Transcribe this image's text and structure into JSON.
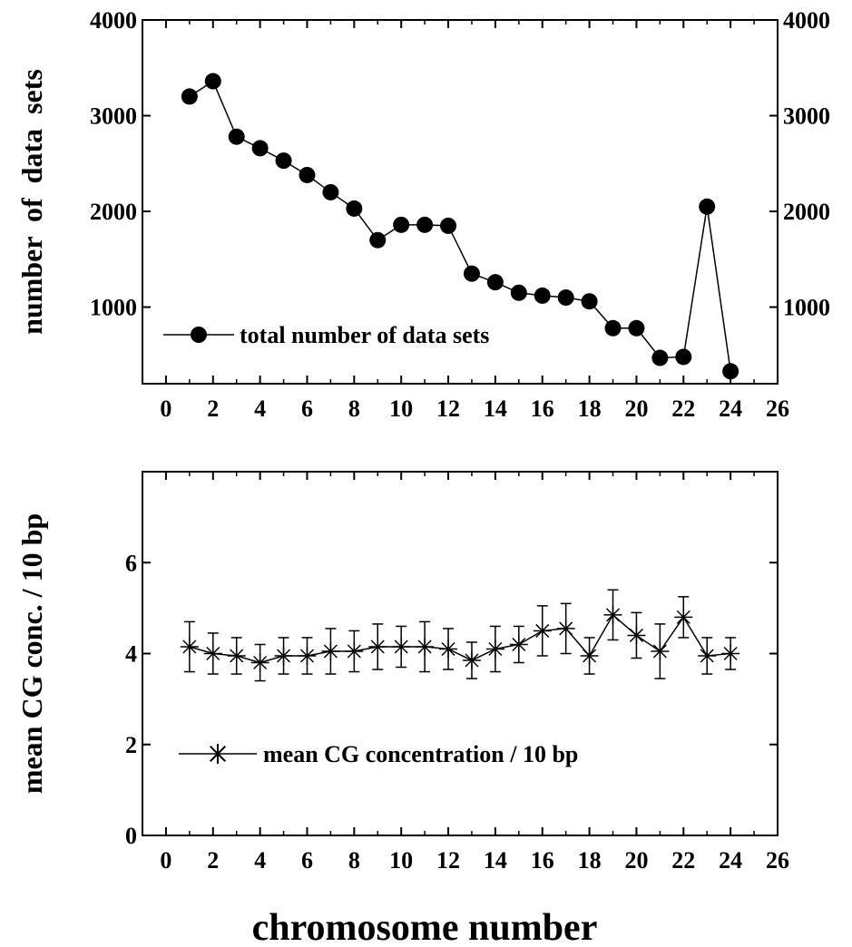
{
  "chart_data": [
    {
      "type": "line",
      "marker": "filled-circle",
      "xlim": [
        -1,
        26
      ],
      "ylim": [
        200,
        4000
      ],
      "xticks": [
        0,
        2,
        4,
        6,
        8,
        10,
        12,
        14,
        16,
        18,
        20,
        22,
        24,
        26
      ],
      "yticks": [
        1000,
        2000,
        3000,
        4000
      ],
      "ylabel": "number  of  data  sets",
      "right_axis_labels": true,
      "legend": {
        "label": "total number of data sets",
        "placement": "bottom-left"
      },
      "series": [
        {
          "name": "total number of data sets",
          "x": [
            1,
            2,
            3,
            4,
            5,
            6,
            7,
            8,
            9,
            10,
            11,
            12,
            13,
            14,
            15,
            16,
            17,
            18,
            19,
            20,
            21,
            22,
            23,
            24
          ],
          "y": [
            3200,
            3360,
            2780,
            2660,
            2530,
            2380,
            2200,
            2030,
            1700,
            1860,
            1860,
            1850,
            1350,
            1260,
            1150,
            1120,
            1100,
            1060,
            780,
            780,
            470,
            480,
            2050,
            330
          ]
        }
      ]
    },
    {
      "type": "line",
      "marker": "asterisk",
      "error_bars": true,
      "xlim": [
        -1,
        26
      ],
      "ylim": [
        0,
        8
      ],
      "xticks": [
        0,
        2,
        4,
        6,
        8,
        10,
        12,
        14,
        16,
        18,
        20,
        22,
        24,
        26
      ],
      "yticks": [
        0,
        2,
        4,
        6
      ],
      "ylabel": "mean CG conc. / 10 bp",
      "legend": {
        "label": "mean CG concentration / 10 bp",
        "placement": "bottom-left"
      },
      "series": [
        {
          "name": "mean CG concentration / 10 bp",
          "x": [
            1,
            2,
            3,
            4,
            5,
            6,
            7,
            8,
            9,
            10,
            11,
            12,
            13,
            14,
            15,
            16,
            17,
            18,
            19,
            20,
            21,
            22,
            23,
            24
          ],
          "y": [
            4.15,
            4.0,
            3.95,
            3.8,
            3.95,
            3.95,
            4.05,
            4.05,
            4.15,
            4.15,
            4.15,
            4.1,
            3.85,
            4.1,
            4.2,
            4.5,
            4.55,
            3.95,
            4.85,
            4.4,
            4.05,
            4.8,
            3.95,
            4.0
          ],
          "err": [
            0.55,
            0.45,
            0.4,
            0.4,
            0.4,
            0.4,
            0.5,
            0.45,
            0.5,
            0.45,
            0.55,
            0.45,
            0.4,
            0.5,
            0.4,
            0.55,
            0.55,
            0.4,
            0.55,
            0.5,
            0.6,
            0.45,
            0.4,
            0.35
          ]
        }
      ]
    }
  ],
  "shared_xlabel": "chromosome number"
}
